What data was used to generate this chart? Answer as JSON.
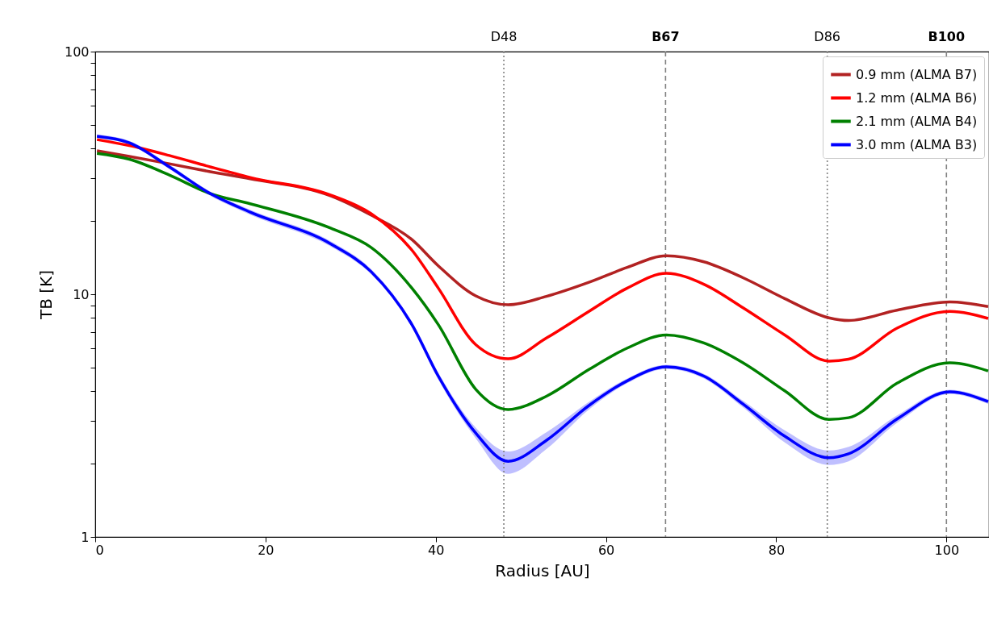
{
  "chart_data": {
    "type": "line",
    "xlabel": "Radius [AU]",
    "ylabel": "TB [K]",
    "log": "y",
    "xlim": [
      0,
      105
    ],
    "xticks": [
      0,
      20,
      40,
      60,
      80,
      100
    ],
    "ylim": [
      1,
      100
    ],
    "yticks": [
      1,
      {
        "value": 2,
        "label": null
      },
      {
        "value": 3,
        "label": null
      },
      {
        "value": 4,
        "label": null
      },
      {
        "value": 5,
        "label": null
      },
      {
        "value": 6,
        "label": null
      },
      {
        "value": 7,
        "label": null
      },
      {
        "value": 8,
        "label": null
      },
      {
        "value": 9,
        "label": null
      },
      10,
      {
        "value": 20,
        "label": null
      },
      {
        "value": 30,
        "label": null
      },
      {
        "value": 40,
        "label": null
      },
      {
        "value": 50,
        "label": null
      },
      {
        "value": 60,
        "label": null
      },
      {
        "value": 70,
        "label": null
      },
      {
        "value": 80,
        "label": null
      },
      {
        "value": 90,
        "label": null
      },
      100
    ],
    "legend": "top right",
    "grid": false,
    "line_style": "solid",
    "marker": "none",
    "x": [
      0.2,
      4,
      8.7,
      13.5,
      18.2,
      27.7,
      32.4,
      37.2,
      40.3,
      44.7,
      48.5,
      53,
      58,
      62.5,
      67.1,
      71.5,
      76.1,
      81,
      86.2,
      88.5,
      94.2,
      100.4,
      104.9
    ],
    "series": [
      {
        "name": "0.9 mm (ALMA B7)",
        "color": "#b22222",
        "values": [
          39,
          37,
          34.5,
          32,
          29.9,
          25.4,
          21.2,
          16.8,
          13.1,
          9.85,
          9.05,
          9.8,
          11.2,
          12.9,
          14.4,
          13.6,
          11.7,
          9.6,
          8.0,
          7.8,
          8.6,
          9.3,
          8.9
        ]
      },
      {
        "name": "1.2 mm (ALMA B6)",
        "color": "#ff0000",
        "values": [
          43.4,
          41,
          37.3,
          33.5,
          30.3,
          25.6,
          21.5,
          15.2,
          10.6,
          6.2,
          5.42,
          6.6,
          8.5,
          10.6,
          12.2,
          11,
          8.8,
          6.8,
          5.3,
          5.4,
          7.25,
          8.5,
          7.95
        ]
      },
      {
        "name": "2.1 mm (ALMA B4)",
        "color": "#008000",
        "values": [
          38.1,
          36,
          31,
          26,
          23.6,
          18.7,
          15.6,
          10.6,
          7.5,
          4.06,
          3.35,
          3.8,
          4.9,
          6.0,
          6.8,
          6.3,
          5.22,
          4.0,
          3.05,
          3.1,
          4.3,
          5.22,
          4.83
        ]
      },
      {
        "name": "3.0 mm (ALMA B3)",
        "color": "#0000ff",
        "values": [
          44.8,
          42.1,
          33.5,
          26,
          21.8,
          16.1,
          12.4,
          7.5,
          4.6,
          2.68,
          2.05,
          2.5,
          3.48,
          4.4,
          5.02,
          4.6,
          3.53,
          2.6,
          2.12,
          2.2,
          3.06,
          3.96,
          3.61
        ],
        "lower": [
          44,
          41.3,
          32.8,
          25.5,
          21.3,
          15.7,
          12.1,
          7.3,
          4.45,
          2.55,
          1.82,
          2.3,
          3.35,
          4.3,
          4.92,
          4.5,
          3.42,
          2.45,
          1.98,
          2.05,
          2.95,
          3.88,
          3.53
        ],
        "upper": [
          45.6,
          42.9,
          34.2,
          26.5,
          22.3,
          16.5,
          12.7,
          7.7,
          4.75,
          2.82,
          2.25,
          2.7,
          3.6,
          4.5,
          5.12,
          4.7,
          3.64,
          2.75,
          2.27,
          2.35,
          3.17,
          4.04,
          3.69
        ]
      }
    ],
    "ref_lines": [
      {
        "axis": "x",
        "value": 48,
        "label": "D48",
        "line_style": "dotted",
        "color": "#808080"
      },
      {
        "axis": "x",
        "value": 67,
        "label": "B67",
        "line_style": "dashed",
        "color": "#808080"
      },
      {
        "axis": "x",
        "value": 86,
        "label": "D86",
        "line_style": "dotted",
        "color": "#808080"
      },
      {
        "axis": "x",
        "value": 100,
        "label": "B100",
        "line_style": "dashed",
        "color": "#808080"
      }
    ]
  }
}
